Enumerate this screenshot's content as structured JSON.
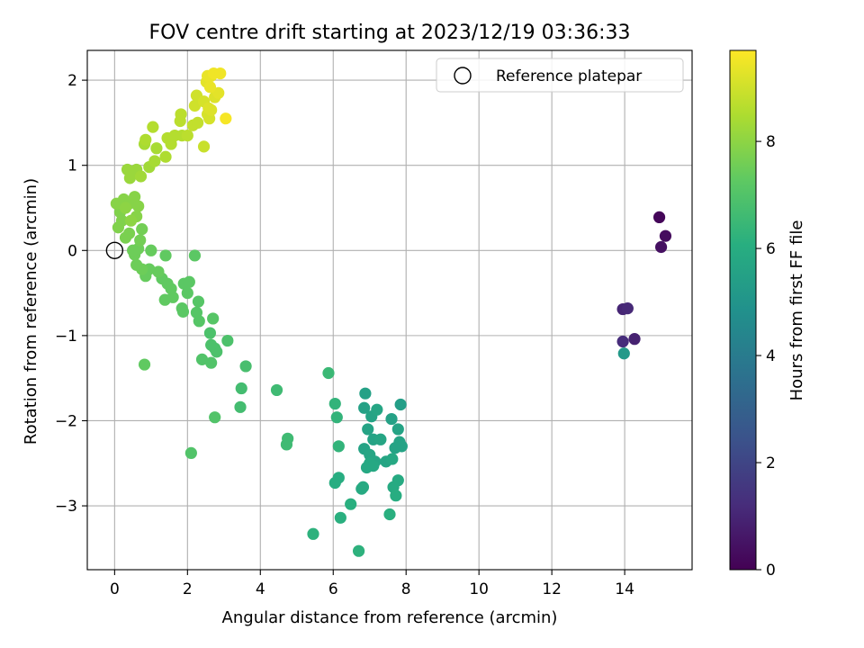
{
  "chart_data": {
    "type": "scatter",
    "title": "FOV centre drift starting at 2023/12/19 03:36:33",
    "xlabel": "Angular distance from reference (arcmin)",
    "ylabel": "Rotation from reference (arcmin)",
    "xlim": [
      -0.75,
      15.85
    ],
    "ylim": [
      -3.75,
      2.35
    ],
    "xticks": [
      0,
      2,
      4,
      6,
      8,
      10,
      12,
      14
    ],
    "xtick_labels": [
      "0",
      "2",
      "4",
      "6",
      "8",
      "10",
      "12",
      "14"
    ],
    "yticks": [
      -3,
      -2,
      -1,
      0,
      1,
      2
    ],
    "ytick_labels": [
      "−3",
      "−2",
      "−1",
      "0",
      "1",
      "2"
    ],
    "grid": true,
    "legend": {
      "placement": "top-right",
      "entries": [
        "Reference platepar"
      ]
    },
    "reference_point": {
      "x": 0,
      "y": 0,
      "label": "Reference platepar"
    },
    "colorbar": {
      "label": "Hours from first FF file",
      "colormap": "viridis",
      "range": [
        0,
        9.7
      ],
      "ticks": [
        0,
        2,
        4,
        6,
        8
      ],
      "tick_labels": [
        "0",
        "2",
        "4",
        "6",
        "8"
      ]
    },
    "points_format": [
      "x",
      "y",
      "hours"
    ],
    "points": [
      [
        14.95,
        0.39,
        0.15
      ],
      [
        15.12,
        0.17,
        0.3
      ],
      [
        15.0,
        0.04,
        0.4
      ],
      [
        13.95,
        -0.69,
        1.0
      ],
      [
        14.08,
        -0.68,
        1.1
      ],
      [
        13.95,
        -1.07,
        1.2
      ],
      [
        14.27,
        -1.04,
        0.9
      ],
      [
        13.98,
        -1.21,
        5.2
      ],
      [
        6.88,
        -1.68,
        5.5
      ],
      [
        6.85,
        -1.85,
        5.5
      ],
      [
        7.05,
        -1.95,
        5.6
      ],
      [
        7.2,
        -1.87,
        5.7
      ],
      [
        7.85,
        -1.81,
        5.4
      ],
      [
        7.6,
        -1.98,
        5.5
      ],
      [
        7.78,
        -2.1,
        5.6
      ],
      [
        6.95,
        -2.1,
        5.6
      ],
      [
        7.1,
        -2.22,
        5.6
      ],
      [
        7.3,
        -2.22,
        5.7
      ],
      [
        7.82,
        -2.25,
        5.6
      ],
      [
        7.88,
        -2.3,
        5.6
      ],
      [
        7.7,
        -2.32,
        5.6
      ],
      [
        6.85,
        -2.33,
        5.6
      ],
      [
        7.0,
        -2.4,
        5.7
      ],
      [
        7.15,
        -2.48,
        5.7
      ],
      [
        7.45,
        -2.48,
        5.7
      ],
      [
        7.62,
        -2.45,
        5.8
      ],
      [
        7.0,
        -2.5,
        5.8
      ],
      [
        6.92,
        -2.55,
        5.8
      ],
      [
        7.1,
        -2.53,
        5.8
      ],
      [
        7.78,
        -2.7,
        5.9
      ],
      [
        7.65,
        -2.78,
        5.9
      ],
      [
        7.72,
        -2.88,
        6.0
      ],
      [
        6.82,
        -2.78,
        5.9
      ],
      [
        6.78,
        -2.8,
        5.9
      ],
      [
        6.15,
        -2.67,
        6.0
      ],
      [
        6.05,
        -2.73,
        6.0
      ],
      [
        6.48,
        -2.98,
        6.1
      ],
      [
        6.2,
        -3.14,
        6.1
      ],
      [
        7.55,
        -3.1,
        6.1
      ],
      [
        5.45,
        -3.33,
        6.2
      ],
      [
        6.7,
        -3.53,
        6.2
      ],
      [
        6.15,
        -2.3,
        6.3
      ],
      [
        6.1,
        -1.96,
        6.3
      ],
      [
        6.05,
        -1.8,
        6.3
      ],
      [
        5.87,
        -1.44,
        6.5
      ],
      [
        4.45,
        -1.64,
        6.6
      ],
      [
        4.75,
        -2.21,
        6.6
      ],
      [
        4.72,
        -2.28,
        6.6
      ],
      [
        3.45,
        -1.84,
        6.7
      ],
      [
        3.48,
        -1.62,
        6.7
      ],
      [
        3.6,
        -1.36,
        6.8
      ],
      [
        3.1,
        -1.06,
        6.9
      ],
      [
        2.75,
        -1.15,
        6.9
      ],
      [
        2.8,
        -1.19,
        6.9
      ],
      [
        2.65,
        -1.11,
        6.9
      ],
      [
        2.62,
        -0.97,
        6.9
      ],
      [
        2.65,
        -1.32,
        7.0
      ],
      [
        2.4,
        -1.28,
        7.0
      ],
      [
        2.75,
        -1.96,
        7.0
      ],
      [
        2.1,
        -2.38,
        7.0
      ],
      [
        0.82,
        -1.34,
        7.3
      ],
      [
        2.7,
        -0.8,
        7.1
      ],
      [
        2.32,
        -0.83,
        7.1
      ],
      [
        2.25,
        -0.73,
        7.1
      ],
      [
        2.3,
        -0.6,
        7.1
      ],
      [
        1.85,
        -0.68,
        7.2
      ],
      [
        1.88,
        -0.72,
        7.2
      ],
      [
        1.9,
        -0.39,
        7.2
      ],
      [
        2.05,
        -0.37,
        7.2
      ],
      [
        2.0,
        -0.5,
        7.2
      ],
      [
        1.55,
        -0.45,
        7.3
      ],
      [
        1.6,
        -0.55,
        7.3
      ],
      [
        1.38,
        -0.58,
        7.3
      ],
      [
        1.45,
        -0.39,
        7.3
      ],
      [
        1.3,
        -0.33,
        7.3
      ],
      [
        1.2,
        -0.25,
        7.4
      ],
      [
        0.95,
        -0.22,
        7.4
      ],
      [
        0.85,
        -0.3,
        7.4
      ],
      [
        0.75,
        -0.22,
        7.5
      ],
      [
        0.6,
        -0.17,
        7.5
      ],
      [
        0.55,
        -0.05,
        7.5
      ],
      [
        0.65,
        0.02,
        7.5
      ],
      [
        0.5,
        0.0,
        7.5
      ],
      [
        1.0,
        0.0,
        7.4
      ],
      [
        1.4,
        -0.06,
        7.3
      ],
      [
        2.2,
        -0.06,
        7.2
      ],
      [
        0.7,
        0.12,
        7.6
      ],
      [
        0.75,
        0.25,
        7.6
      ],
      [
        0.4,
        0.2,
        7.7
      ],
      [
        0.3,
        0.15,
        7.7
      ],
      [
        0.2,
        0.35,
        7.8
      ],
      [
        0.1,
        0.27,
        7.8
      ],
      [
        0.15,
        0.45,
        7.8
      ],
      [
        0.05,
        0.55,
        7.9
      ],
      [
        0.25,
        0.6,
        7.9
      ],
      [
        0.4,
        0.55,
        7.9
      ],
      [
        0.55,
        0.63,
        7.9
      ],
      [
        0.65,
        0.52,
        7.9
      ],
      [
        0.6,
        0.4,
        7.9
      ],
      [
        0.45,
        0.35,
        8.0
      ],
      [
        0.3,
        0.5,
        8.0
      ],
      [
        0.5,
        0.9,
        8.2
      ],
      [
        0.6,
        0.95,
        8.2
      ],
      [
        0.35,
        0.95,
        8.2
      ],
      [
        0.42,
        0.85,
        8.2
      ],
      [
        0.72,
        0.87,
        8.3
      ],
      [
        0.95,
        0.98,
        8.3
      ],
      [
        1.1,
        1.05,
        8.4
      ],
      [
        1.15,
        1.2,
        8.4
      ],
      [
        0.82,
        1.25,
        8.4
      ],
      [
        0.85,
        1.3,
        8.5
      ],
      [
        1.4,
        1.1,
        8.5
      ],
      [
        1.45,
        1.32,
        8.6
      ],
      [
        1.55,
        1.25,
        8.6
      ],
      [
        1.65,
        1.35,
        8.6
      ],
      [
        1.85,
        1.35,
        8.6
      ],
      [
        2.0,
        1.35,
        8.7
      ],
      [
        1.05,
        1.45,
        8.6
      ],
      [
        1.8,
        1.52,
        8.7
      ],
      [
        1.82,
        1.6,
        8.7
      ],
      [
        2.15,
        1.47,
        8.8
      ],
      [
        2.28,
        1.5,
        8.8
      ],
      [
        2.45,
        1.22,
        8.9
      ],
      [
        2.2,
        1.7,
        9.0
      ],
      [
        2.25,
        1.82,
        9.0
      ],
      [
        2.55,
        1.6,
        9.1
      ],
      [
        2.45,
        1.75,
        9.1
      ],
      [
        2.6,
        1.55,
        9.1
      ],
      [
        2.65,
        1.65,
        9.2
      ],
      [
        2.75,
        1.8,
        9.2
      ],
      [
        2.85,
        1.85,
        9.3
      ],
      [
        2.52,
        1.98,
        9.3
      ],
      [
        2.55,
        2.05,
        9.4
      ],
      [
        2.65,
        2.05,
        9.4
      ],
      [
        2.72,
        2.08,
        9.5
      ],
      [
        2.9,
        2.08,
        9.5
      ],
      [
        3.05,
        1.55,
        9.6
      ],
      [
        2.62,
        1.92,
        9.4
      ],
      [
        2.58,
        1.67,
        9.2
      ]
    ]
  }
}
